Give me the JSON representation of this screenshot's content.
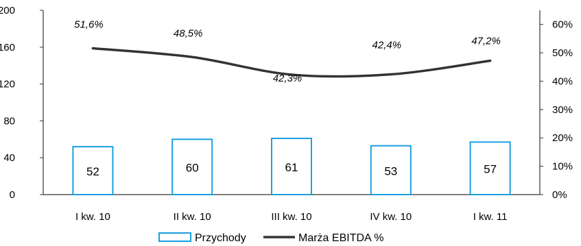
{
  "chart_data": {
    "type": "bar",
    "title": "",
    "categories": [
      "I kw. 10",
      "II kw. 10",
      "III kw. 10",
      "IV kw. 10",
      "I kw. 11"
    ],
    "series": [
      {
        "name": "Przychody",
        "chart_type": "bar",
        "axis": "left",
        "values": [
          52,
          60,
          61,
          53,
          57
        ],
        "data_labels": [
          "52",
          "60",
          "61",
          "53",
          "57"
        ]
      },
      {
        "name": "Marża EBITDA %",
        "chart_type": "line",
        "axis": "right",
        "values": [
          51.6,
          48.5,
          42.3,
          42.4,
          47.2
        ],
        "data_labels": [
          "51,6%",
          "48,5%",
          "42,3%",
          "42,4%",
          "47,2%"
        ]
      }
    ],
    "y_left": {
      "ylim": [
        0,
        200
      ],
      "ticks": [
        "0",
        "40",
        "80",
        "120",
        "160",
        "200"
      ]
    },
    "y_right": {
      "ylim": [
        0,
        65
      ],
      "ticks": [
        "0%",
        "10%",
        "20%",
        "30%",
        "40%",
        "50%",
        "60%"
      ]
    },
    "grid": false,
    "legend_position": "bottom",
    "colors": {
      "bar_stroke": "#1a9fe0",
      "bar_fill": "#ffffff",
      "line": "#333333",
      "axis": "#333333"
    }
  }
}
